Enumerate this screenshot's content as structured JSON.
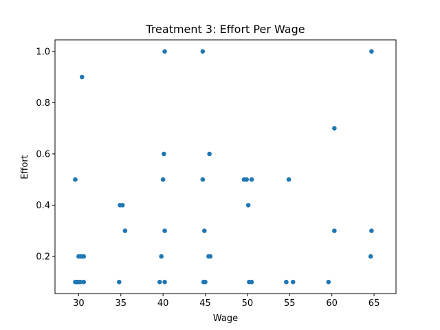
{
  "chart_data": {
    "type": "scatter",
    "title": "Treatment 3: Effort Per Wage",
    "xlabel": "Wage",
    "ylabel": "Effort",
    "xlim": [
      27.2,
      67.6
    ],
    "ylim": [
      0.055,
      1.045
    ],
    "xticks": [
      30,
      35,
      40,
      45,
      50,
      55,
      60,
      65
    ],
    "yticks": [
      0.2,
      0.4,
      0.6,
      0.8,
      1.0
    ],
    "ytick_labels": [
      "0.2",
      "0.4",
      "0.6",
      "0.8",
      "1.0"
    ],
    "grid": false,
    "marker_color": "#1f77b4",
    "points": [
      {
        "x": 29.6,
        "y": 0.1
      },
      {
        "x": 29.8,
        "y": 0.1
      },
      {
        "x": 30.0,
        "y": 0.1
      },
      {
        "x": 30.2,
        "y": 0.1
      },
      {
        "x": 30.6,
        "y": 0.1
      },
      {
        "x": 30.0,
        "y": 0.2
      },
      {
        "x": 30.2,
        "y": 0.2
      },
      {
        "x": 30.4,
        "y": 0.2
      },
      {
        "x": 30.6,
        "y": 0.2
      },
      {
        "x": 29.6,
        "y": 0.5
      },
      {
        "x": 30.4,
        "y": 0.9
      },
      {
        "x": 34.8,
        "y": 0.1
      },
      {
        "x": 34.9,
        "y": 0.4
      },
      {
        "x": 35.2,
        "y": 0.4
      },
      {
        "x": 35.5,
        "y": 0.3
      },
      {
        "x": 39.6,
        "y": 0.1
      },
      {
        "x": 40.2,
        "y": 0.1
      },
      {
        "x": 39.8,
        "y": 0.2
      },
      {
        "x": 40.2,
        "y": 0.3
      },
      {
        "x": 40.0,
        "y": 0.5
      },
      {
        "x": 40.1,
        "y": 0.6
      },
      {
        "x": 40.2,
        "y": 1.0
      },
      {
        "x": 44.8,
        "y": 0.1
      },
      {
        "x": 45.0,
        "y": 0.1
      },
      {
        "x": 45.4,
        "y": 0.2
      },
      {
        "x": 45.6,
        "y": 0.2
      },
      {
        "x": 44.9,
        "y": 0.3
      },
      {
        "x": 44.7,
        "y": 0.5
      },
      {
        "x": 45.5,
        "y": 0.6
      },
      {
        "x": 44.7,
        "y": 1.0
      },
      {
        "x": 50.2,
        "y": 0.1
      },
      {
        "x": 50.5,
        "y": 0.1
      },
      {
        "x": 50.1,
        "y": 0.4
      },
      {
        "x": 49.6,
        "y": 0.5
      },
      {
        "x": 49.9,
        "y": 0.5
      },
      {
        "x": 50.5,
        "y": 0.5
      },
      {
        "x": 54.6,
        "y": 0.1
      },
      {
        "x": 55.4,
        "y": 0.1
      },
      {
        "x": 54.9,
        "y": 0.5
      },
      {
        "x": 59.6,
        "y": 0.1
      },
      {
        "x": 60.3,
        "y": 0.3
      },
      {
        "x": 60.3,
        "y": 0.7
      },
      {
        "x": 64.6,
        "y": 0.2
      },
      {
        "x": 64.7,
        "y": 0.3
      },
      {
        "x": 64.7,
        "y": 1.0
      }
    ]
  }
}
